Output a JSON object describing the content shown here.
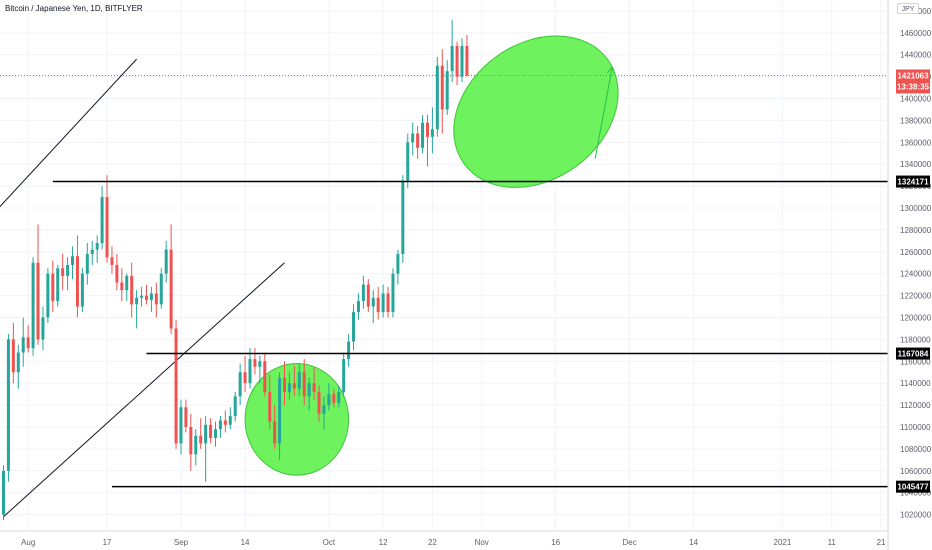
{
  "header": {
    "title": "Bitcoin / Japanese Yen, 1D, BITFLYER",
    "currency": "JPY"
  },
  "colors": {
    "up": "#26a69a",
    "down": "#ef5350",
    "highlight": "#6ef25e",
    "grid": "#f0f3fa",
    "axis_text": "#5d606b",
    "price_tag": "#ef5350",
    "level_tag": "#000000"
  },
  "chart_data": {
    "type": "candlestick",
    "title": "Bitcoin / Japanese Yen, 1D, BITFLYER",
    "ylim": [
      1005000,
      1490000
    ],
    "y_ticks": [
      1020000,
      1040000,
      1060000,
      1080000,
      1100000,
      1120000,
      1140000,
      1160000,
      1180000,
      1200000,
      1220000,
      1240000,
      1260000,
      1280000,
      1300000,
      1320000,
      1340000,
      1360000,
      1380000,
      1400000,
      1420000,
      1440000,
      1460000,
      1480000
    ],
    "x_ticks": [
      {
        "label": "Aug",
        "index": 5
      },
      {
        "label": "17",
        "index": 21
      },
      {
        "label": "Sep",
        "index": 36
      },
      {
        "label": "14",
        "index": 49
      },
      {
        "label": "Oct",
        "index": 66
      },
      {
        "label": "12",
        "index": 77
      },
      {
        "label": "22",
        "index": 87
      },
      {
        "label": "Nov",
        "index": 97
      },
      {
        "label": "16",
        "index": 112
      },
      {
        "label": "Dec",
        "index": 127
      },
      {
        "label": "14",
        "index": 140
      },
      {
        "label": "2021",
        "index": 158
      },
      {
        "label": "11",
        "index": 168
      },
      {
        "label": "21",
        "index": 178
      }
    ],
    "last_price": {
      "value": 1421063,
      "label": "1421063",
      "countdown": "13:38:35"
    },
    "levels": [
      {
        "value": 1324171,
        "label": "1324171",
        "start_index": 10
      },
      {
        "value": 1167084,
        "label": "1167084",
        "start_index": 29
      },
      {
        "value": 1045477,
        "label": "1045477",
        "start_index": 22
      }
    ],
    "trendlines": [
      {
        "from": {
          "index": -1,
          "value": 1300000
        },
        "to": {
          "index": 27,
          "value": 1436000
        }
      },
      {
        "from": {
          "index": 0,
          "value": 1018000
        },
        "to": {
          "index": 57,
          "value": 1250000
        }
      }
    ],
    "highlights": [
      {
        "center_index": 59.5,
        "center_value": 1107000,
        "radius_bars": 10.5,
        "radius_value": 51000
      },
      {
        "center_index": 108,
        "center_value": 1388000,
        "radius_bars": 18,
        "radius_value": 62000,
        "rotation": 36
      }
    ],
    "projection_arrow": {
      "from": {
        "index": 120,
        "value": 1345000
      },
      "to": {
        "index": 123.5,
        "value": 1429000
      }
    },
    "candles": [
      [
        1020000,
        1065000,
        1015000,
        1060000
      ],
      [
        1060000,
        1185000,
        1050000,
        1180000
      ],
      [
        1180000,
        1195000,
        1140000,
        1150000
      ],
      [
        1150000,
        1175000,
        1135000,
        1168000
      ],
      [
        1168000,
        1200000,
        1155000,
        1182000
      ],
      [
        1182000,
        1193000,
        1168000,
        1172000
      ],
      [
        1172000,
        1255000,
        1165000,
        1250000
      ],
      [
        1250000,
        1285000,
        1175000,
        1180000
      ],
      [
        1180000,
        1210000,
        1170000,
        1200000
      ],
      [
        1200000,
        1245000,
        1195000,
        1240000
      ],
      [
        1240000,
        1252000,
        1205000,
        1215000
      ],
      [
        1215000,
        1248000,
        1210000,
        1245000
      ],
      [
        1245000,
        1258000,
        1225000,
        1238000
      ],
      [
        1238000,
        1255000,
        1225000,
        1248000
      ],
      [
        1248000,
        1265000,
        1235000,
        1256000
      ],
      [
        1256000,
        1275000,
        1200000,
        1210000
      ],
      [
        1210000,
        1245000,
        1205000,
        1240000
      ],
      [
        1240000,
        1268000,
        1230000,
        1258000
      ],
      [
        1258000,
        1270000,
        1248000,
        1262000
      ],
      [
        1262000,
        1275000,
        1250000,
        1268000
      ],
      [
        1268000,
        1320000,
        1262000,
        1310000
      ],
      [
        1310000,
        1330000,
        1250000,
        1255000
      ],
      [
        1255000,
        1265000,
        1240000,
        1248000
      ],
      [
        1248000,
        1258000,
        1225000,
        1232000
      ],
      [
        1232000,
        1245000,
        1215000,
        1225000
      ],
      [
        1225000,
        1240000,
        1215000,
        1238000
      ],
      [
        1238000,
        1250000,
        1200000,
        1212000
      ],
      [
        1212000,
        1225000,
        1190000,
        1218000
      ],
      [
        1218000,
        1228000,
        1210000,
        1220000
      ],
      [
        1220000,
        1230000,
        1212000,
        1216000
      ],
      [
        1216000,
        1228000,
        1205000,
        1222000
      ],
      [
        1222000,
        1232000,
        1200000,
        1212000
      ],
      [
        1212000,
        1245000,
        1208000,
        1240000
      ],
      [
        1240000,
        1270000,
        1232000,
        1262000
      ],
      [
        1262000,
        1285000,
        1185000,
        1190000
      ],
      [
        1190000,
        1198000,
        1080000,
        1085000
      ],
      [
        1085000,
        1125000,
        1075000,
        1118000
      ],
      [
        1118000,
        1125000,
        1095000,
        1100000
      ],
      [
        1100000,
        1112000,
        1060000,
        1075000
      ],
      [
        1075000,
        1098000,
        1065000,
        1092000
      ],
      [
        1092000,
        1108000,
        1080000,
        1085000
      ],
      [
        1085000,
        1110000,
        1050000,
        1102000
      ],
      [
        1102000,
        1108000,
        1085000,
        1090000
      ],
      [
        1090000,
        1105000,
        1082000,
        1098000
      ],
      [
        1098000,
        1110000,
        1090000,
        1106000
      ],
      [
        1106000,
        1115000,
        1095000,
        1102000
      ],
      [
        1102000,
        1118000,
        1098000,
        1110000
      ],
      [
        1110000,
        1132000,
        1105000,
        1128000
      ],
      [
        1128000,
        1158000,
        1120000,
        1150000
      ],
      [
        1150000,
        1165000,
        1132000,
        1140000
      ],
      [
        1140000,
        1172000,
        1135000,
        1162000
      ],
      [
        1162000,
        1172000,
        1148000,
        1155000
      ],
      [
        1155000,
        1165000,
        1140000,
        1160000
      ],
      [
        1160000,
        1168000,
        1128000,
        1132000
      ],
      [
        1132000,
        1148000,
        1098000,
        1105000
      ],
      [
        1105000,
        1120000,
        1080000,
        1085000
      ],
      [
        1085000,
        1150000,
        1070000,
        1145000
      ],
      [
        1145000,
        1160000,
        1120000,
        1132000
      ],
      [
        1132000,
        1150000,
        1125000,
        1140000
      ],
      [
        1140000,
        1156000,
        1128000,
        1135000
      ],
      [
        1135000,
        1158000,
        1128000,
        1150000
      ],
      [
        1150000,
        1162000,
        1120000,
        1128000
      ],
      [
        1128000,
        1145000,
        1115000,
        1140000
      ],
      [
        1140000,
        1155000,
        1125000,
        1132000
      ],
      [
        1132000,
        1138000,
        1105000,
        1112000
      ],
      [
        1112000,
        1128000,
        1098000,
        1120000
      ],
      [
        1120000,
        1140000,
        1115000,
        1130000
      ],
      [
        1130000,
        1135000,
        1118000,
        1122000
      ],
      [
        1122000,
        1138000,
        1118000,
        1132000
      ],
      [
        1132000,
        1168000,
        1128000,
        1162000
      ],
      [
        1162000,
        1185000,
        1155000,
        1178000
      ],
      [
        1178000,
        1212000,
        1170000,
        1205000
      ],
      [
        1205000,
        1222000,
        1198000,
        1215000
      ],
      [
        1215000,
        1238000,
        1208000,
        1230000
      ],
      [
        1230000,
        1235000,
        1205000,
        1210000
      ],
      [
        1210000,
        1225000,
        1195000,
        1218000
      ],
      [
        1218000,
        1228000,
        1198000,
        1205000
      ],
      [
        1205000,
        1230000,
        1200000,
        1222000
      ],
      [
        1222000,
        1228000,
        1200000,
        1205000
      ],
      [
        1205000,
        1245000,
        1200000,
        1240000
      ],
      [
        1240000,
        1262000,
        1230000,
        1258000
      ],
      [
        1258000,
        1330000,
        1250000,
        1325000
      ],
      [
        1325000,
        1368000,
        1318000,
        1360000
      ],
      [
        1360000,
        1378000,
        1348000,
        1368000
      ],
      [
        1368000,
        1375000,
        1345000,
        1355000
      ],
      [
        1355000,
        1385000,
        1350000,
        1378000
      ],
      [
        1378000,
        1385000,
        1338000,
        1365000
      ],
      [
        1365000,
        1392000,
        1350000,
        1372000
      ],
      [
        1372000,
        1438000,
        1365000,
        1430000
      ],
      [
        1430000,
        1445000,
        1368000,
        1390000
      ],
      [
        1390000,
        1435000,
        1385000,
        1425000
      ],
      [
        1425000,
        1472000,
        1415000,
        1448000
      ],
      [
        1448000,
        1452000,
        1412000,
        1420000
      ],
      [
        1420000,
        1455000,
        1415000,
        1448000
      ],
      [
        1448000,
        1458000,
        1420000,
        1421063
      ]
    ]
  }
}
